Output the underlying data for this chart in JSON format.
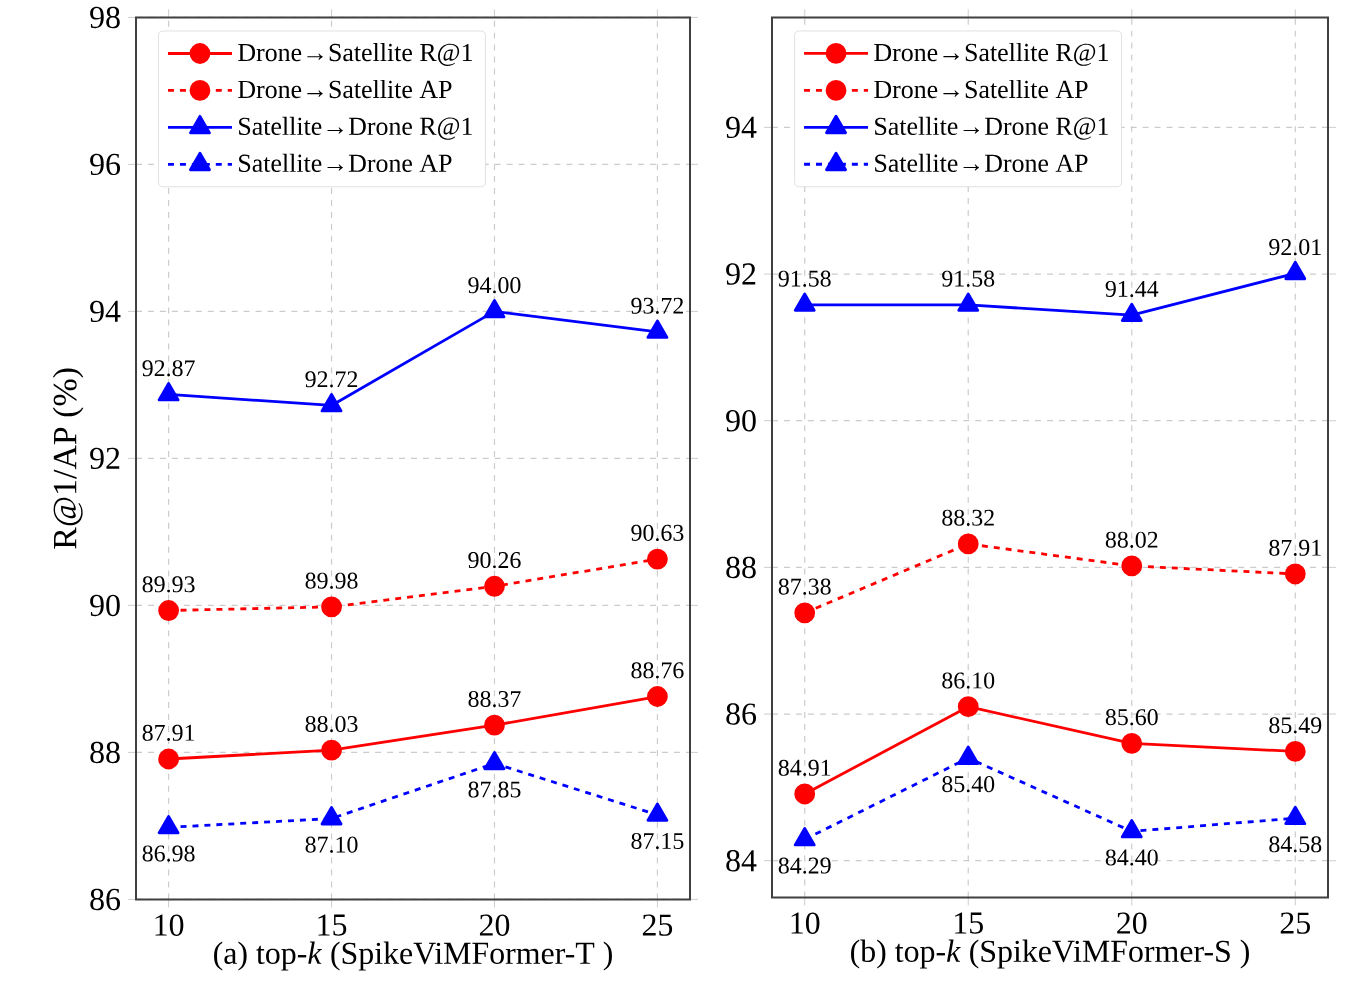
{
  "chart_data": [
    {
      "type": "line",
      "xlabel": "(a) top-*k* (SpikeViMFormer-T )",
      "ylabel": "R@1/AP (%)",
      "x": [
        10,
        15,
        20,
        25
      ],
      "xlim": [
        9,
        26
      ],
      "xticks": [
        10,
        15,
        20,
        25
      ],
      "ylim": [
        86,
        98
      ],
      "yticks": [
        86,
        88,
        90,
        92,
        94,
        96,
        98
      ],
      "grid": true,
      "legend": "top left",
      "series": [
        {
          "name": "Drone→Satellite R@1",
          "color": "#ff0000",
          "marker": "circle",
          "line_style": "solid",
          "values": [
            87.91,
            88.03,
            88.37,
            88.76
          ],
          "value_labels": [
            "87.91",
            "88.03",
            "88.37",
            "88.76"
          ]
        },
        {
          "name": "Drone→Satellite AP",
          "color": "#ff0000",
          "marker": "circle",
          "line_style": "dashed",
          "values": [
            89.93,
            89.98,
            90.26,
            90.63
          ],
          "value_labels": [
            "89.93",
            "89.98",
            "90.26",
            "90.63"
          ]
        },
        {
          "name": "Satellite→Drone R@1",
          "color": "#0000ff",
          "marker": "triangle",
          "line_style": "solid",
          "values": [
            92.87,
            92.72,
            94.0,
            93.72
          ],
          "value_labels": [
            "92.87",
            "92.72",
            "94.00",
            "93.72"
          ]
        },
        {
          "name": "Satellite→Drone AP",
          "color": "#0000ff",
          "marker": "triangle",
          "line_style": "dashed",
          "values": [
            86.98,
            87.1,
            87.85,
            87.15
          ],
          "value_labels": [
            "86.98",
            "87.10",
            "87.85",
            "87.15"
          ]
        }
      ]
    },
    {
      "type": "line",
      "xlabel": "(b) top-*k* (SpikeViMFormer-S )",
      "x": [
        10,
        15,
        20,
        25
      ],
      "xlim": [
        9,
        26
      ],
      "xticks": [
        10,
        15,
        20,
        25
      ],
      "ylim": [
        83.5,
        95.5
      ],
      "yticks": [
        84,
        86,
        88,
        90,
        92,
        94
      ],
      "grid": true,
      "legend": "top left",
      "series": [
        {
          "name": "Drone→Satellite R@1",
          "color": "#ff0000",
          "marker": "circle",
          "line_style": "solid",
          "values": [
            84.91,
            86.1,
            85.6,
            85.49
          ],
          "value_labels": [
            "84.91",
            "86.10",
            "85.60",
            "85.49"
          ]
        },
        {
          "name": "Drone→Satellite AP",
          "color": "#ff0000",
          "marker": "circle",
          "line_style": "dashed",
          "values": [
            87.38,
            88.32,
            88.02,
            87.91
          ],
          "value_labels": [
            "87.38",
            "88.32",
            "88.02",
            "87.91"
          ]
        },
        {
          "name": "Satellite→Drone R@1",
          "color": "#0000ff",
          "marker": "triangle",
          "line_style": "solid",
          "values": [
            91.58,
            91.58,
            91.44,
            92.01
          ],
          "value_labels": [
            "91.58",
            "91.58",
            "91.44",
            "92.01"
          ]
        },
        {
          "name": "Satellite→Drone AP",
          "color": "#0000ff",
          "marker": "triangle",
          "line_style": "dashed",
          "values": [
            84.29,
            85.4,
            84.4,
            84.58
          ],
          "value_labels": [
            "84.29",
            "85.40",
            "84.40",
            "84.58"
          ]
        }
      ]
    }
  ]
}
